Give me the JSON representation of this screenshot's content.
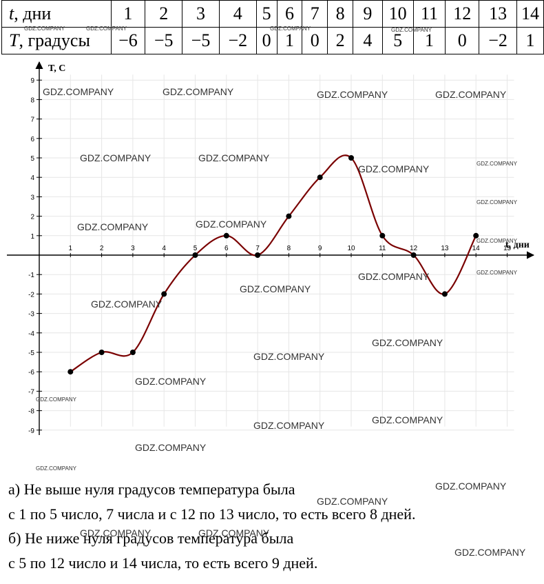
{
  "table": {
    "row1_label": "t, дни",
    "row1_var": "t",
    "row1_unit": ", дни",
    "row2_label": "T, градусы",
    "row2_var": "T",
    "row2_unit": ", градусы",
    "days": [
      "1",
      "2",
      "3",
      "4",
      "5",
      "6",
      "7",
      "8",
      "9",
      "10",
      "11",
      "12",
      "13",
      "14"
    ],
    "temps": [
      "−6",
      "−5",
      "−5",
      "−2",
      "0",
      "1",
      "0",
      "2",
      "4",
      "5",
      "1",
      "0",
      "−2",
      "1"
    ]
  },
  "chart_data": {
    "type": "line",
    "xlabel": "t, дни",
    "ylabel": "T, C",
    "x": [
      1,
      2,
      3,
      4,
      5,
      6,
      7,
      8,
      9,
      10,
      11,
      12,
      13,
      14
    ],
    "y": [
      -6,
      -5,
      -5,
      -2,
      0,
      1,
      0,
      2,
      4,
      5,
      1,
      0,
      -2,
      1
    ],
    "xlim": [
      0,
      15
    ],
    "ylim": [
      -9,
      9
    ],
    "x_ticks": [
      "1",
      "2",
      "3",
      "4",
      "5",
      "6",
      "7",
      "8",
      "9",
      "10",
      "11",
      "12",
      "13",
      "14",
      "15"
    ],
    "y_ticks": [
      "9",
      "8",
      "7",
      "6",
      "5",
      "4",
      "3",
      "2",
      "1",
      "-1",
      "-2",
      "-3",
      "-4",
      "-5",
      "-6",
      "-7",
      "-8",
      "-9"
    ],
    "grid": true,
    "line_color": "#7a0000"
  },
  "watermark_text": "GDZ.COMPANY",
  "notes": [
    "а) Не выше нуля градусов температура была",
    "с 1 по 5 число, 7 числа и с 12 по 13 число, то есть всего 8 дней.",
    "б) Не ниже нуля градусов температура была",
    "с 5 по 12 число и 14 числа, то есть всего 9 дней."
  ]
}
